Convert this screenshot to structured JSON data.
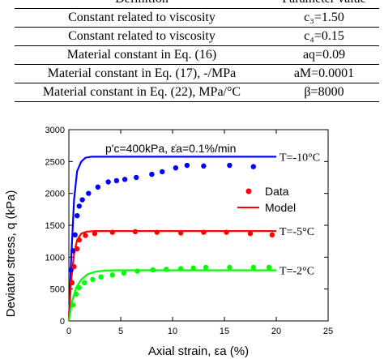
{
  "table": {
    "header": {
      "definition": "Definition",
      "value": "Parameter value"
    },
    "rows": [
      {
        "definition": "Constant related to viscosity",
        "value": "c₃=1.50"
      },
      {
        "definition": "Constant related to viscosity",
        "value": "c₄=0.15"
      },
      {
        "definition": "Material constant in Eq. (16)",
        "value": "aq=0.09"
      },
      {
        "definition": "Material constant in Eq. (17), -/MPa",
        "value": "aM=0.0001"
      },
      {
        "definition": "Material constant in Eq. (22), MPa/°C",
        "value": "β=8000"
      }
    ]
  },
  "chart_data": {
    "type": "scatter",
    "xlabel": "Axial strain, εa (%)",
    "ylabel": "Deviator stress, q (kPa)",
    "xlim": [
      0,
      25
    ],
    "ylim": [
      0,
      3000
    ],
    "xticks": [
      0,
      5,
      10,
      15,
      20,
      25
    ],
    "yticks": [
      0,
      500,
      1000,
      1500,
      2000,
      2500,
      3000
    ],
    "annotation": "p'c=400kPa, ε̇a=0.1%/min",
    "legend": {
      "position": "right",
      "entries": [
        {
          "label": "Data",
          "marker": "dot",
          "color": "#ff0000"
        },
        {
          "label": "Model",
          "marker": "line",
          "color": "#ff0000"
        }
      ]
    },
    "series": [
      {
        "name": "T=-10°C",
        "color": "#0000ff",
        "points": [
          [
            0.2,
            800
          ],
          [
            0.4,
            1100
          ],
          [
            0.6,
            1350
          ],
          [
            0.8,
            1650
          ],
          [
            1,
            1800
          ],
          [
            1.3,
            1900
          ],
          [
            1.9,
            2000
          ],
          [
            2.8,
            2100
          ],
          [
            3.8,
            2180
          ],
          [
            4.6,
            2200
          ],
          [
            5.4,
            2220
          ],
          [
            6.5,
            2250
          ],
          [
            8,
            2300
          ],
          [
            9,
            2340
          ],
          [
            10.3,
            2400
          ],
          [
            11.4,
            2440
          ],
          [
            13,
            2430
          ],
          [
            15.5,
            2440
          ],
          [
            17.8,
            2420
          ]
        ],
        "model": [
          [
            0,
            0
          ],
          [
            0.2,
            900
          ],
          [
            0.5,
            1900
          ],
          [
            0.8,
            2350
          ],
          [
            1.2,
            2500
          ],
          [
            1.6,
            2560
          ],
          [
            2.2,
            2575
          ],
          [
            20,
            2575
          ]
        ],
        "label": "T=-10°C"
      },
      {
        "name": "T=-5°C",
        "color": "#ff0000",
        "points": [
          [
            0.3,
            600
          ],
          [
            0.5,
            850
          ],
          [
            0.8,
            1130
          ],
          [
            1,
            1270
          ],
          [
            1.6,
            1340
          ],
          [
            2.5,
            1370
          ],
          [
            4.2,
            1390
          ],
          [
            6.4,
            1400
          ],
          [
            8.5,
            1390
          ],
          [
            10.8,
            1380
          ],
          [
            13,
            1390
          ],
          [
            15.2,
            1390
          ],
          [
            17.5,
            1370
          ],
          [
            19.6,
            1350
          ]
        ],
        "model": [
          [
            0,
            0
          ],
          [
            0.2,
            600
          ],
          [
            0.5,
            1050
          ],
          [
            0.8,
            1270
          ],
          [
            1.2,
            1370
          ],
          [
            1.7,
            1400
          ],
          [
            2.4,
            1410
          ],
          [
            20,
            1410
          ]
        ],
        "label": "T=-5°C"
      },
      {
        "name": "T=-2°C",
        "color": "#00ff00",
        "points": [
          [
            0.4,
            250
          ],
          [
            0.7,
            420
          ],
          [
            1,
            520
          ],
          [
            1.5,
            600
          ],
          [
            2.3,
            650
          ],
          [
            3.1,
            690
          ],
          [
            4.2,
            720
          ],
          [
            5.3,
            750
          ],
          [
            6.6,
            780
          ],
          [
            8.1,
            800
          ],
          [
            9.4,
            810
          ],
          [
            10.8,
            820
          ],
          [
            12,
            830
          ],
          [
            13.2,
            840
          ],
          [
            15.5,
            840
          ],
          [
            17.8,
            840
          ],
          [
            19.3,
            840
          ]
        ],
        "model": [
          [
            0,
            0
          ],
          [
            0.3,
            300
          ],
          [
            0.7,
            520
          ],
          [
            1.2,
            650
          ],
          [
            1.8,
            730
          ],
          [
            2.5,
            770
          ],
          [
            3.4,
            790
          ],
          [
            4.5,
            795
          ],
          [
            20,
            795
          ]
        ],
        "label": "T=-2°C"
      }
    ]
  }
}
